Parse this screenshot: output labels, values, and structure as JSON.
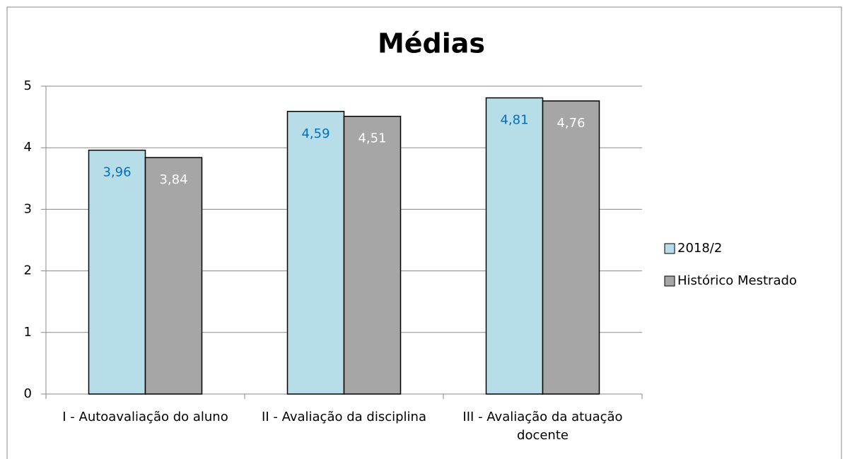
{
  "chart_data": {
    "type": "bar",
    "title": "Médias",
    "categories": [
      "I - Autoavaliação do aluno",
      "II - Avaliação da disciplina",
      "III - Avaliação da atuação docente"
    ],
    "series": [
      {
        "name": "2018/2",
        "color": "#b7dde8",
        "label_color": "#0070c0",
        "values": [
          3.96,
          4.59,
          4.81
        ],
        "value_labels": [
          "3,96",
          "4,59",
          "4,81"
        ]
      },
      {
        "name": "Histórico Mestrado",
        "color": "#a6a6a6",
        "label_color": "#ffffff",
        "values": [
          3.84,
          4.51,
          4.76
        ],
        "value_labels": [
          "3,84",
          "4,51",
          "4,76"
        ]
      }
    ],
    "ylim": [
      0,
      5
    ],
    "yticks": [
      0,
      1,
      2,
      3,
      4,
      5
    ],
    "grid": true,
    "legend": "right"
  }
}
